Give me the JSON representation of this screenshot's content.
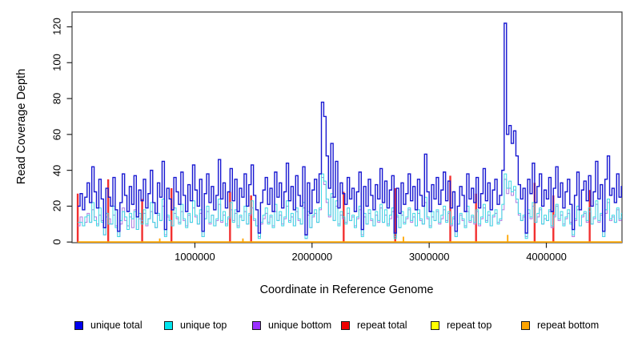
{
  "y_axis": {
    "label": "Read Coverage Depth",
    "ticks": [
      0,
      20,
      40,
      60,
      80,
      100,
      120
    ]
  },
  "x_axis": {
    "label": "Coordinate in Reference Genome",
    "ticks": [
      1000000,
      2000000,
      3000000,
      4000000
    ],
    "tick_labels": [
      "1000000",
      "2000000",
      "3000000",
      "4000000"
    ]
  },
  "chart_data": {
    "type": "line",
    "title": "",
    "xlabel": "Coordinate in Reference Genome",
    "ylabel": "Read Coverage Depth",
    "xlim": [
      0,
      4660000
    ],
    "ylim": [
      0,
      128
    ],
    "x_step": 20000,
    "grid": false,
    "legend_position": "bottom",
    "draw_order": [
      4,
      3,
      2,
      1,
      5,
      0
    ],
    "series": [
      {
        "name": "unique total",
        "color": "#0000EE",
        "line_color": "#1717D1",
        "width": 1.4,
        "values": [
          20,
          27,
          18,
          25,
          33,
          22,
          42,
          28,
          19,
          35,
          24,
          8,
          30,
          25,
          20,
          36,
          18,
          6,
          22,
          38,
          26,
          17,
          31,
          21,
          37,
          14,
          29,
          23,
          35,
          19,
          27,
          40,
          22,
          16,
          33,
          25,
          45,
          7,
          30,
          24,
          18,
          36,
          28,
          21,
          39,
          26,
          17,
          32,
          23,
          43,
          29,
          20,
          35,
          6,
          27,
          38,
          22,
          31,
          18,
          26,
          46,
          24,
          33,
          19,
          28,
          41,
          23,
          35,
          17,
          30,
          25,
          38,
          20,
          32,
          43,
          26,
          18,
          5,
          22,
          29,
          36,
          21,
          30,
          17,
          39,
          25,
          33,
          19,
          28,
          44,
          23,
          31,
          18,
          37,
          26,
          20,
          42,
          4,
          33,
          16,
          29,
          35,
          22,
          38,
          78,
          70,
          48,
          30,
          55,
          25,
          45,
          19,
          33,
          27,
          21,
          36,
          24,
          30,
          17,
          28,
          39,
          7,
          31,
          20,
          35,
          26,
          18,
          32,
          24,
          41,
          22,
          34,
          19,
          29,
          37,
          5,
          30,
          16,
          33,
          21,
          27,
          38,
          23,
          31,
          18,
          35,
          26,
          20,
          49,
          28,
          17,
          32,
          24,
          36,
          21,
          29,
          39,
          23,
          34,
          19,
          28,
          6,
          20,
          31,
          26,
          17,
          38,
          24,
          30,
          22,
          36,
          19,
          27,
          41,
          23,
          33,
          18,
          29,
          35,
          21,
          26,
          40,
          122,
          60,
          65,
          55,
          62,
          48,
          32,
          24,
          30,
          5,
          35,
          27,
          44,
          22,
          31,
          38,
          20,
          29,
          24,
          36,
          17,
          30,
          42,
          25,
          33,
          19,
          28,
          35,
          21,
          7,
          26,
          39,
          18,
          29,
          34,
          23,
          37,
          20,
          28,
          45,
          24,
          32,
          6,
          35,
          48,
          26,
          30,
          22,
          38,
          25,
          31,
          19
        ]
      },
      {
        "name": "unique top",
        "color": "#00E5EE",
        "line_color": "#3FD9E4",
        "width": 1,
        "values": [
          11,
          11,
          9,
          14,
          15,
          11,
          22,
          12,
          9,
          19,
          11,
          4,
          16,
          10,
          10,
          20,
          8,
          3,
          12,
          17,
          14,
          7,
          16,
          13,
          17,
          7,
          16,
          10,
          18,
          10,
          13,
          22,
          11,
          8,
          16,
          12,
          24,
          3,
          15,
          12,
          9,
          19,
          14,
          10,
          21,
          13,
          8,
          16,
          11,
          23,
          15,
          10,
          18,
          3,
          13,
          20,
          11,
          15,
          9,
          13,
          24,
          12,
          17,
          9,
          14,
          22,
          11,
          18,
          8,
          15,
          12,
          20,
          10,
          16,
          23,
          13,
          9,
          2,
          11,
          15,
          19,
          10,
          15,
          8,
          21,
          12,
          17,
          9,
          14,
          23,
          11,
          16,
          9,
          19,
          13,
          10,
          22,
          2,
          17,
          8,
          15,
          18,
          11,
          19,
          38,
          34,
          24,
          15,
          27,
          12,
          23,
          9,
          17,
          14,
          10,
          19,
          12,
          15,
          8,
          14,
          20,
          3,
          16,
          10,
          18,
          13,
          9,
          17,
          12,
          21,
          11,
          18,
          9,
          15,
          19,
          2,
          15,
          8,
          17,
          10,
          14,
          19,
          12,
          16,
          9,
          18,
          13,
          10,
          25,
          14,
          8,
          17,
          12,
          18,
          11,
          15,
          20,
          11,
          17,
          10,
          14,
          3,
          10,
          16,
          13,
          8,
          20,
          12,
          15,
          11,
          18,
          10,
          14,
          21,
          11,
          17,
          9,
          15,
          18,
          10,
          13,
          21,
          38,
          30,
          34,
          28,
          31,
          24,
          16,
          12,
          15,
          2,
          18,
          14,
          22,
          11,
          16,
          19,
          10,
          15,
          12,
          18,
          9,
          15,
          21,
          13,
          17,
          9,
          14,
          18,
          10,
          4,
          13,
          20,
          9,
          15,
          17,
          12,
          19,
          10,
          14,
          23,
          12,
          16,
          3,
          18,
          24,
          13,
          15,
          11,
          19,
          13,
          16,
          9
        ]
      },
      {
        "name": "unique bottom",
        "color": "#9B30FF",
        "line_color": "#AC7BE0",
        "width": 1,
        "values": [
          9,
          14,
          9,
          11,
          16,
          11,
          18,
          14,
          10,
          15,
          12,
          4,
          14,
          13,
          10,
          15,
          9,
          3,
          10,
          19,
          12,
          9,
          14,
          8,
          18,
          7,
          13,
          12,
          16,
          9,
          13,
          17,
          11,
          8,
          15,
          12,
          20,
          4,
          14,
          12,
          9,
          16,
          13,
          11,
          17,
          12,
          9,
          15,
          11,
          19,
          14,
          10,
          16,
          3,
          13,
          17,
          10,
          15,
          9,
          12,
          21,
          11,
          15,
          10,
          13,
          18,
          12,
          16,
          9,
          14,
          12,
          17,
          10,
          15,
          19,
          12,
          9,
          3,
          10,
          13,
          16,
          11,
          14,
          9,
          17,
          12,
          15,
          10,
          13,
          20,
          12,
          14,
          9,
          17,
          12,
          10,
          19,
          2,
          15,
          8,
          14,
          16,
          11,
          18,
          36,
          32,
          22,
          14,
          25,
          12,
          20,
          10,
          15,
          13,
          11,
          16,
          12,
          14,
          9,
          13,
          18,
          4,
          14,
          10,
          16,
          12,
          9,
          15,
          11,
          19,
          11,
          15,
          10,
          13,
          17,
          3,
          14,
          8,
          15,
          11,
          13,
          18,
          11,
          14,
          9,
          16,
          12,
          10,
          22,
          13,
          9,
          14,
          12,
          17,
          10,
          13,
          18,
          12,
          16,
          9,
          13,
          3,
          10,
          15,
          12,
          9,
          17,
          11,
          14,
          10,
          17,
          9,
          13,
          19,
          12,
          15,
          9,
          14,
          16,
          11,
          12,
          18,
          35,
          27,
          30,
          26,
          29,
          22,
          15,
          12,
          14,
          3,
          16,
          13,
          20,
          11,
          14,
          18,
          10,
          13,
          12,
          17,
          8,
          14,
          20,
          12,
          15,
          10,
          13,
          16,
          11,
          3,
          12,
          18,
          9,
          14,
          16,
          11,
          17,
          10,
          13,
          21,
          11,
          15,
          3,
          16,
          22,
          12,
          14,
          11,
          18,
          12,
          14,
          9
        ]
      },
      {
        "name": "repeat total",
        "color": "#EE0000",
        "line_color": "#F23030",
        "width": 2.4,
        "baseline": null,
        "spikes": [
          [
            0,
            27
          ],
          [
            260000,
            35
          ],
          [
            550000,
            24
          ],
          [
            800000,
            30
          ],
          [
            1300000,
            28
          ],
          [
            1480000,
            26
          ],
          [
            2270000,
            28
          ],
          [
            2710000,
            30
          ],
          [
            3180000,
            37
          ],
          [
            3400000,
            27
          ],
          [
            3900000,
            33
          ],
          [
            4060000,
            26
          ],
          [
            4370000,
            29
          ]
        ]
      },
      {
        "name": "repeat top",
        "color": "#FFFF00",
        "line_color": "#FFFF00",
        "width": 1.2,
        "baseline": 0,
        "spikes": []
      },
      {
        "name": "repeat bottom",
        "color": "#FFA500",
        "line_color": "#FFA500",
        "width": 1.8,
        "baseline": 0,
        "spikes": [
          [
            700000,
            2
          ],
          [
            1410000,
            2
          ],
          [
            2780000,
            3
          ],
          [
            3670000,
            4
          ]
        ]
      }
    ]
  }
}
